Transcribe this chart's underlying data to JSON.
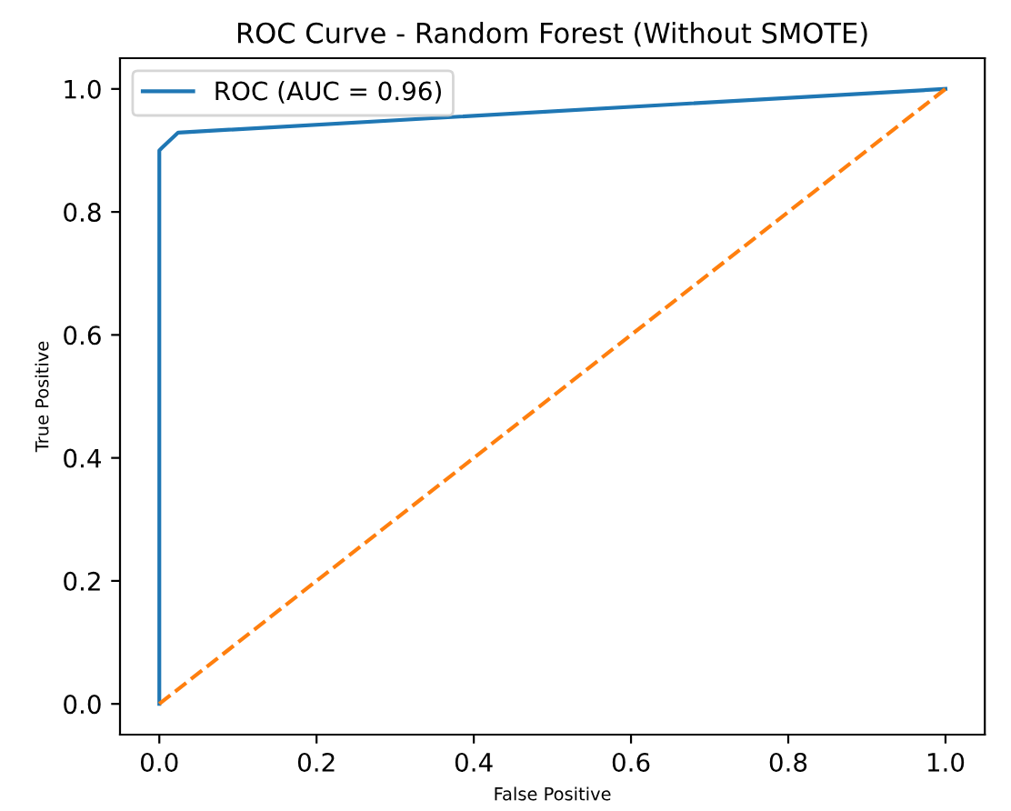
{
  "chart_data": {
    "type": "line",
    "title": "ROC Curve - Random Forest (Without SMOTE)",
    "xlabel": "False Positive",
    "ylabel": "True Positive",
    "series": [
      {
        "name": "ROC (AUC = 0.96)",
        "color": "#1f77b4",
        "x": [
          0,
          0,
          0,
          0.004,
          0.008,
          0.024,
          1.0
        ],
        "values": [
          0,
          0.86,
          0.9,
          0.905,
          0.91,
          0.929,
          1.0
        ]
      },
      {
        "color": "#ff7f0e",
        "x": [
          0,
          1
        ],
        "values": [
          0,
          1
        ],
        "line_style": "dashed"
      }
    ],
    "xlim": [
      -0.05,
      1.05
    ],
    "ylim": [
      -0.05,
      1.05
    ],
    "xticks": [
      {
        "value": 0,
        "label": "0.0"
      },
      0.2,
      0.4,
      0.6,
      0.8,
      {
        "value": 1,
        "label": "1.0"
      }
    ],
    "yticks": [
      {
        "value": 0,
        "label": "0.0"
      },
      0.2,
      0.4,
      0.6,
      0.8,
      {
        "value": 1,
        "label": "1.0"
      }
    ],
    "legend": "upper left",
    "grid": false
  }
}
